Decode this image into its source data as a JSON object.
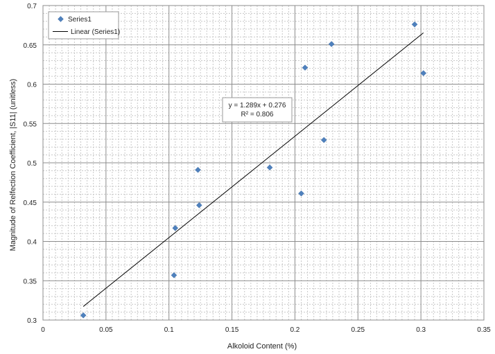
{
  "chart_data": {
    "type": "scatter",
    "title": "",
    "xlabel": "Alkoloid Content (%)",
    "ylabel": "Magnitude of Relfection Coefficient, |S11| (unitless)",
    "xlim": [
      0,
      0.35
    ],
    "ylim": [
      0.3,
      0.7
    ],
    "x_ticks": [
      "0",
      "0.05",
      "0.1",
      "0.15",
      "0.2",
      "0.25",
      "0.3",
      "0.35"
    ],
    "y_ticks": [
      "0.3",
      "0.35",
      "0.4",
      "0.45",
      "0.5",
      "0.55",
      "0.6",
      "0.65",
      "0.7"
    ],
    "grid": true,
    "legend_position": "top-left",
    "series": [
      {
        "name": "Series1",
        "color": "#4f81bd",
        "marker": "diamond",
        "x": [
          0.032,
          0.104,
          0.105,
          0.123,
          0.124,
          0.18,
          0.205,
          0.208,
          0.223,
          0.229,
          0.295,
          0.302
        ],
        "y": [
          0.306,
          0.357,
          0.417,
          0.491,
          0.446,
          0.494,
          0.461,
          0.621,
          0.529,
          0.651,
          0.676,
          0.614
        ]
      }
    ],
    "trendline": {
      "name": "Linear (Series1)",
      "type": "linear",
      "slope": 1.289,
      "intercept": 0.276,
      "x_range": [
        0.032,
        0.302
      ],
      "color": "#000000"
    },
    "annotations": {
      "equation": "y = 1.289x + 0.276",
      "r_squared": "R² = 0.806"
    }
  }
}
